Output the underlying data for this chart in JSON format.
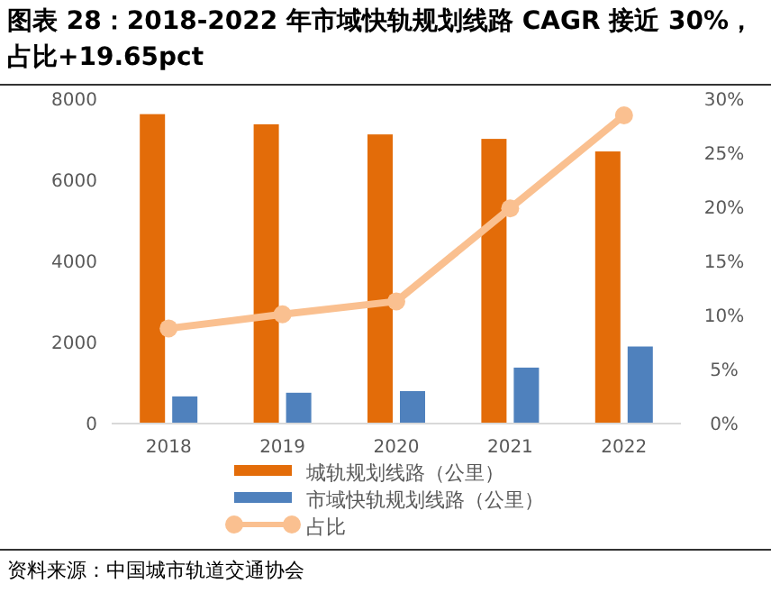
{
  "chart_data": {
    "type": "bar",
    "title": "图表 28：2018-2022 年市域快轨规划线路 CAGR 接近 30%，占比+19.65pct",
    "categories": [
      "2018",
      "2019",
      "2020",
      "2021",
      "2022"
    ],
    "series": [
      {
        "name": "城轨规划线路（公里）",
        "color": "#e36c09",
        "values": [
          7630,
          7380,
          7130,
          7020,
          6710
        ]
      },
      {
        "name": "市域快轨规划线路（公里）",
        "color": "#4f81bd",
        "values": [
          670,
          760,
          800,
          1380,
          1900
        ]
      },
      {
        "name": "占比",
        "type": "line",
        "axis": "y2",
        "marker": "circle",
        "color": "#fac090",
        "values": [
          8.8,
          10.1,
          11.3,
          19.9,
          28.5
        ]
      }
    ],
    "ylim": [
      0,
      8000
    ],
    "yticks": [
      0,
      2000,
      4000,
      6000,
      8000
    ],
    "y2lim": [
      0,
      30
    ],
    "y2ticks": [
      {
        "value": 0,
        "label": "0%"
      },
      {
        "value": 5,
        "label": "5%"
      },
      {
        "value": 10,
        "label": "10%"
      },
      {
        "value": 15,
        "label": "15%"
      },
      {
        "value": 20,
        "label": "20%"
      },
      {
        "value": 25,
        "label": "25%"
      },
      {
        "value": 30,
        "label": "30%"
      }
    ],
    "legend": "bottom",
    "annotations": [
      "资料来源：中国城市轨道交通协会"
    ]
  }
}
